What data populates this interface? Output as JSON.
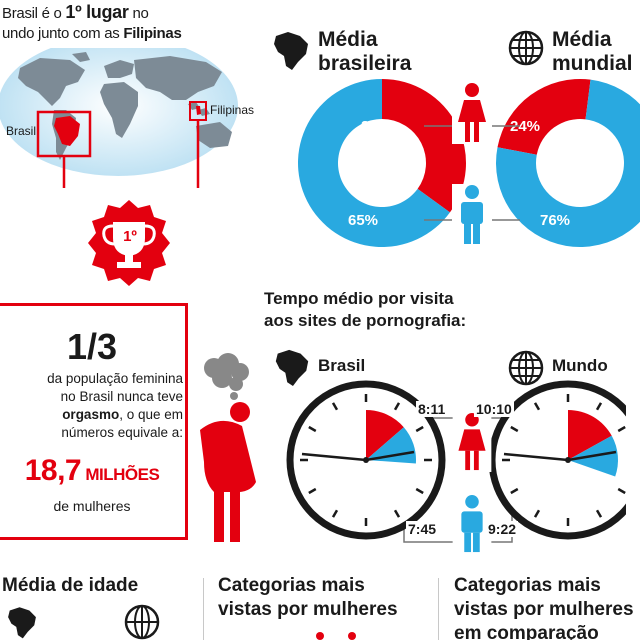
{
  "intro": {
    "line1_a": "Brasil é o ",
    "line1_b": "1º lugar",
    "line1_c": " no",
    "line2_a": "undo junto com as ",
    "line2_b": "Filipinas"
  },
  "map": {
    "label_brasil": "Brasil",
    "label_filipinas": "Filipinas",
    "rank": "1º"
  },
  "media_brasileira": {
    "title_line1": "Média",
    "title_line2": "brasileira",
    "female_pct": "35%",
    "male_pct": "65%",
    "female_value": 35,
    "male_value": 65
  },
  "media_mundial": {
    "title_line1": "Média",
    "title_line2": "mundial",
    "female_pct": "24%",
    "male_pct": "76%",
    "female_value": 24,
    "male_value": 76
  },
  "stat": {
    "fraction": "1/3",
    "desc_line1": "da população feminina",
    "desc_line2": "no Brasil nunca teve",
    "desc_line3_bold": "orgasmo",
    "desc_line3_rest": ", o que em",
    "desc_line4": "números equivale a:",
    "big_number": "18,7",
    "big_unit": " MILHÕES",
    "unit": "de mulheres"
  },
  "tempo": {
    "title_line1": "Tempo médio por visita",
    "title_line2": "aos sites de pornografia:",
    "brasil_label": "Brasil",
    "mundo_label": "Mundo",
    "brasil_female": "8:11",
    "brasil_male": "7:45",
    "mundo_female": "10:10",
    "mundo_male": "9:22"
  },
  "bottom": {
    "idade_title": "Média de idade",
    "cat_mulheres_line1": "Categorias mais",
    "cat_mulheres_line2": "vistas por mulheres",
    "cat_comp_line1": "Categorias mais",
    "cat_comp_line2": "vistas por mulheres",
    "cat_comp_line3": "em comparação"
  },
  "colors": {
    "red": "#e3000f",
    "blue": "#29a9e0",
    "dark": "#1a1a1a"
  },
  "icons": [
    "brazil-map-icon",
    "globe-icon",
    "female-icon",
    "male-icon",
    "trophy-icon",
    "clock-icon",
    "sad-woman-icon"
  ]
}
